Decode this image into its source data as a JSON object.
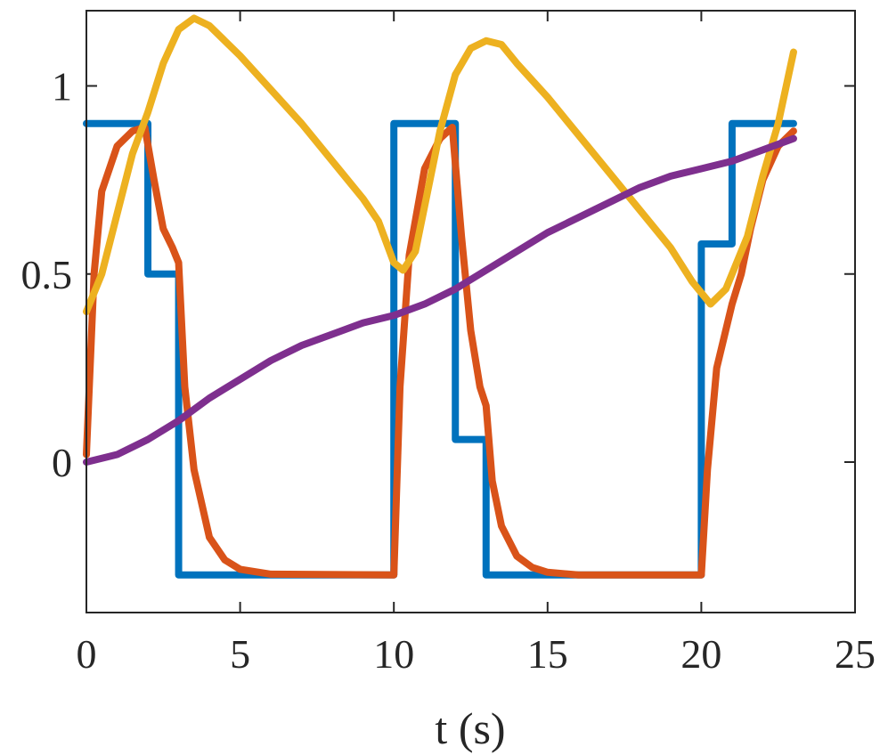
{
  "chart_data": {
    "type": "line",
    "xlabel": "t (s)",
    "xlim": [
      0,
      25
    ],
    "xticks": [
      0,
      5,
      10,
      15,
      20,
      25
    ],
    "ylim": [
      -0.4,
      1.2
    ],
    "yticks": [
      0,
      0.5,
      1
    ],
    "grid": false,
    "series": [
      {
        "color": "#0072BD",
        "x": [
          0,
          2,
          2,
          3,
          3,
          10,
          10,
          12,
          12,
          13,
          13,
          20,
          20,
          21,
          21,
          23
        ],
        "values": [
          0.9,
          0.9,
          0.5,
          0.5,
          -0.3,
          -0.3,
          0.9,
          0.9,
          0.06,
          0.06,
          -0.3,
          -0.3,
          0.58,
          0.58,
          0.9,
          0.9
        ]
      },
      {
        "color": "#D95319",
        "x": [
          0,
          0.25,
          0.5,
          1,
          1.5,
          1.9,
          2.2,
          2.5,
          2.8,
          3,
          3.2,
          3.5,
          4,
          4.5,
          5,
          6,
          10,
          10.2,
          10.5,
          11,
          11.5,
          11.9,
          12.2,
          12.5,
          12.8,
          13,
          13.2,
          13.5,
          14,
          14.5,
          15,
          16,
          20,
          20.2,
          20.5,
          21,
          21.3,
          21.6,
          22,
          22.5,
          23
        ],
        "values": [
          0.02,
          0.5,
          0.72,
          0.84,
          0.88,
          0.89,
          0.75,
          0.62,
          0.57,
          0.53,
          0.2,
          -0.02,
          -0.2,
          -0.26,
          -0.285,
          -0.298,
          -0.3,
          0.2,
          0.55,
          0.78,
          0.86,
          0.89,
          0.6,
          0.35,
          0.2,
          0.15,
          -0.05,
          -0.17,
          -0.25,
          -0.28,
          -0.293,
          -0.3,
          -0.3,
          -0.02,
          0.25,
          0.42,
          0.5,
          0.62,
          0.75,
          0.84,
          0.88
        ]
      },
      {
        "color": "#EDB120",
        "x": [
          0,
          0.5,
          1,
          1.5,
          2,
          2.5,
          3,
          3.5,
          4,
          5,
          6,
          7,
          8,
          9,
          9.5,
          10,
          10.3,
          10.7,
          11,
          11.5,
          12,
          12.5,
          13,
          13.5,
          14,
          15,
          16,
          17,
          18,
          19,
          19.7,
          20.3,
          20.8,
          21.5,
          22,
          22.5,
          23
        ],
        "values": [
          0.4,
          0.5,
          0.66,
          0.82,
          0.93,
          1.06,
          1.15,
          1.18,
          1.16,
          1.08,
          0.99,
          0.9,
          0.8,
          0.7,
          0.64,
          0.53,
          0.51,
          0.56,
          0.68,
          0.88,
          1.03,
          1.1,
          1.12,
          1.11,
          1.06,
          0.97,
          0.87,
          0.77,
          0.67,
          0.57,
          0.48,
          0.42,
          0.46,
          0.6,
          0.76,
          0.9,
          1.09
        ]
      },
      {
        "color": "#7E2F8E",
        "x": [
          0,
          1,
          2,
          3,
          4,
          5,
          6,
          7,
          8,
          9,
          10,
          11,
          12,
          13,
          14,
          15,
          16,
          17,
          18,
          19,
          20,
          21,
          22,
          23
        ],
        "values": [
          0,
          0.02,
          0.06,
          0.11,
          0.17,
          0.22,
          0.27,
          0.31,
          0.34,
          0.37,
          0.39,
          0.42,
          0.46,
          0.51,
          0.56,
          0.61,
          0.65,
          0.69,
          0.73,
          0.76,
          0.78,
          0.8,
          0.83,
          0.86
        ]
      }
    ]
  }
}
